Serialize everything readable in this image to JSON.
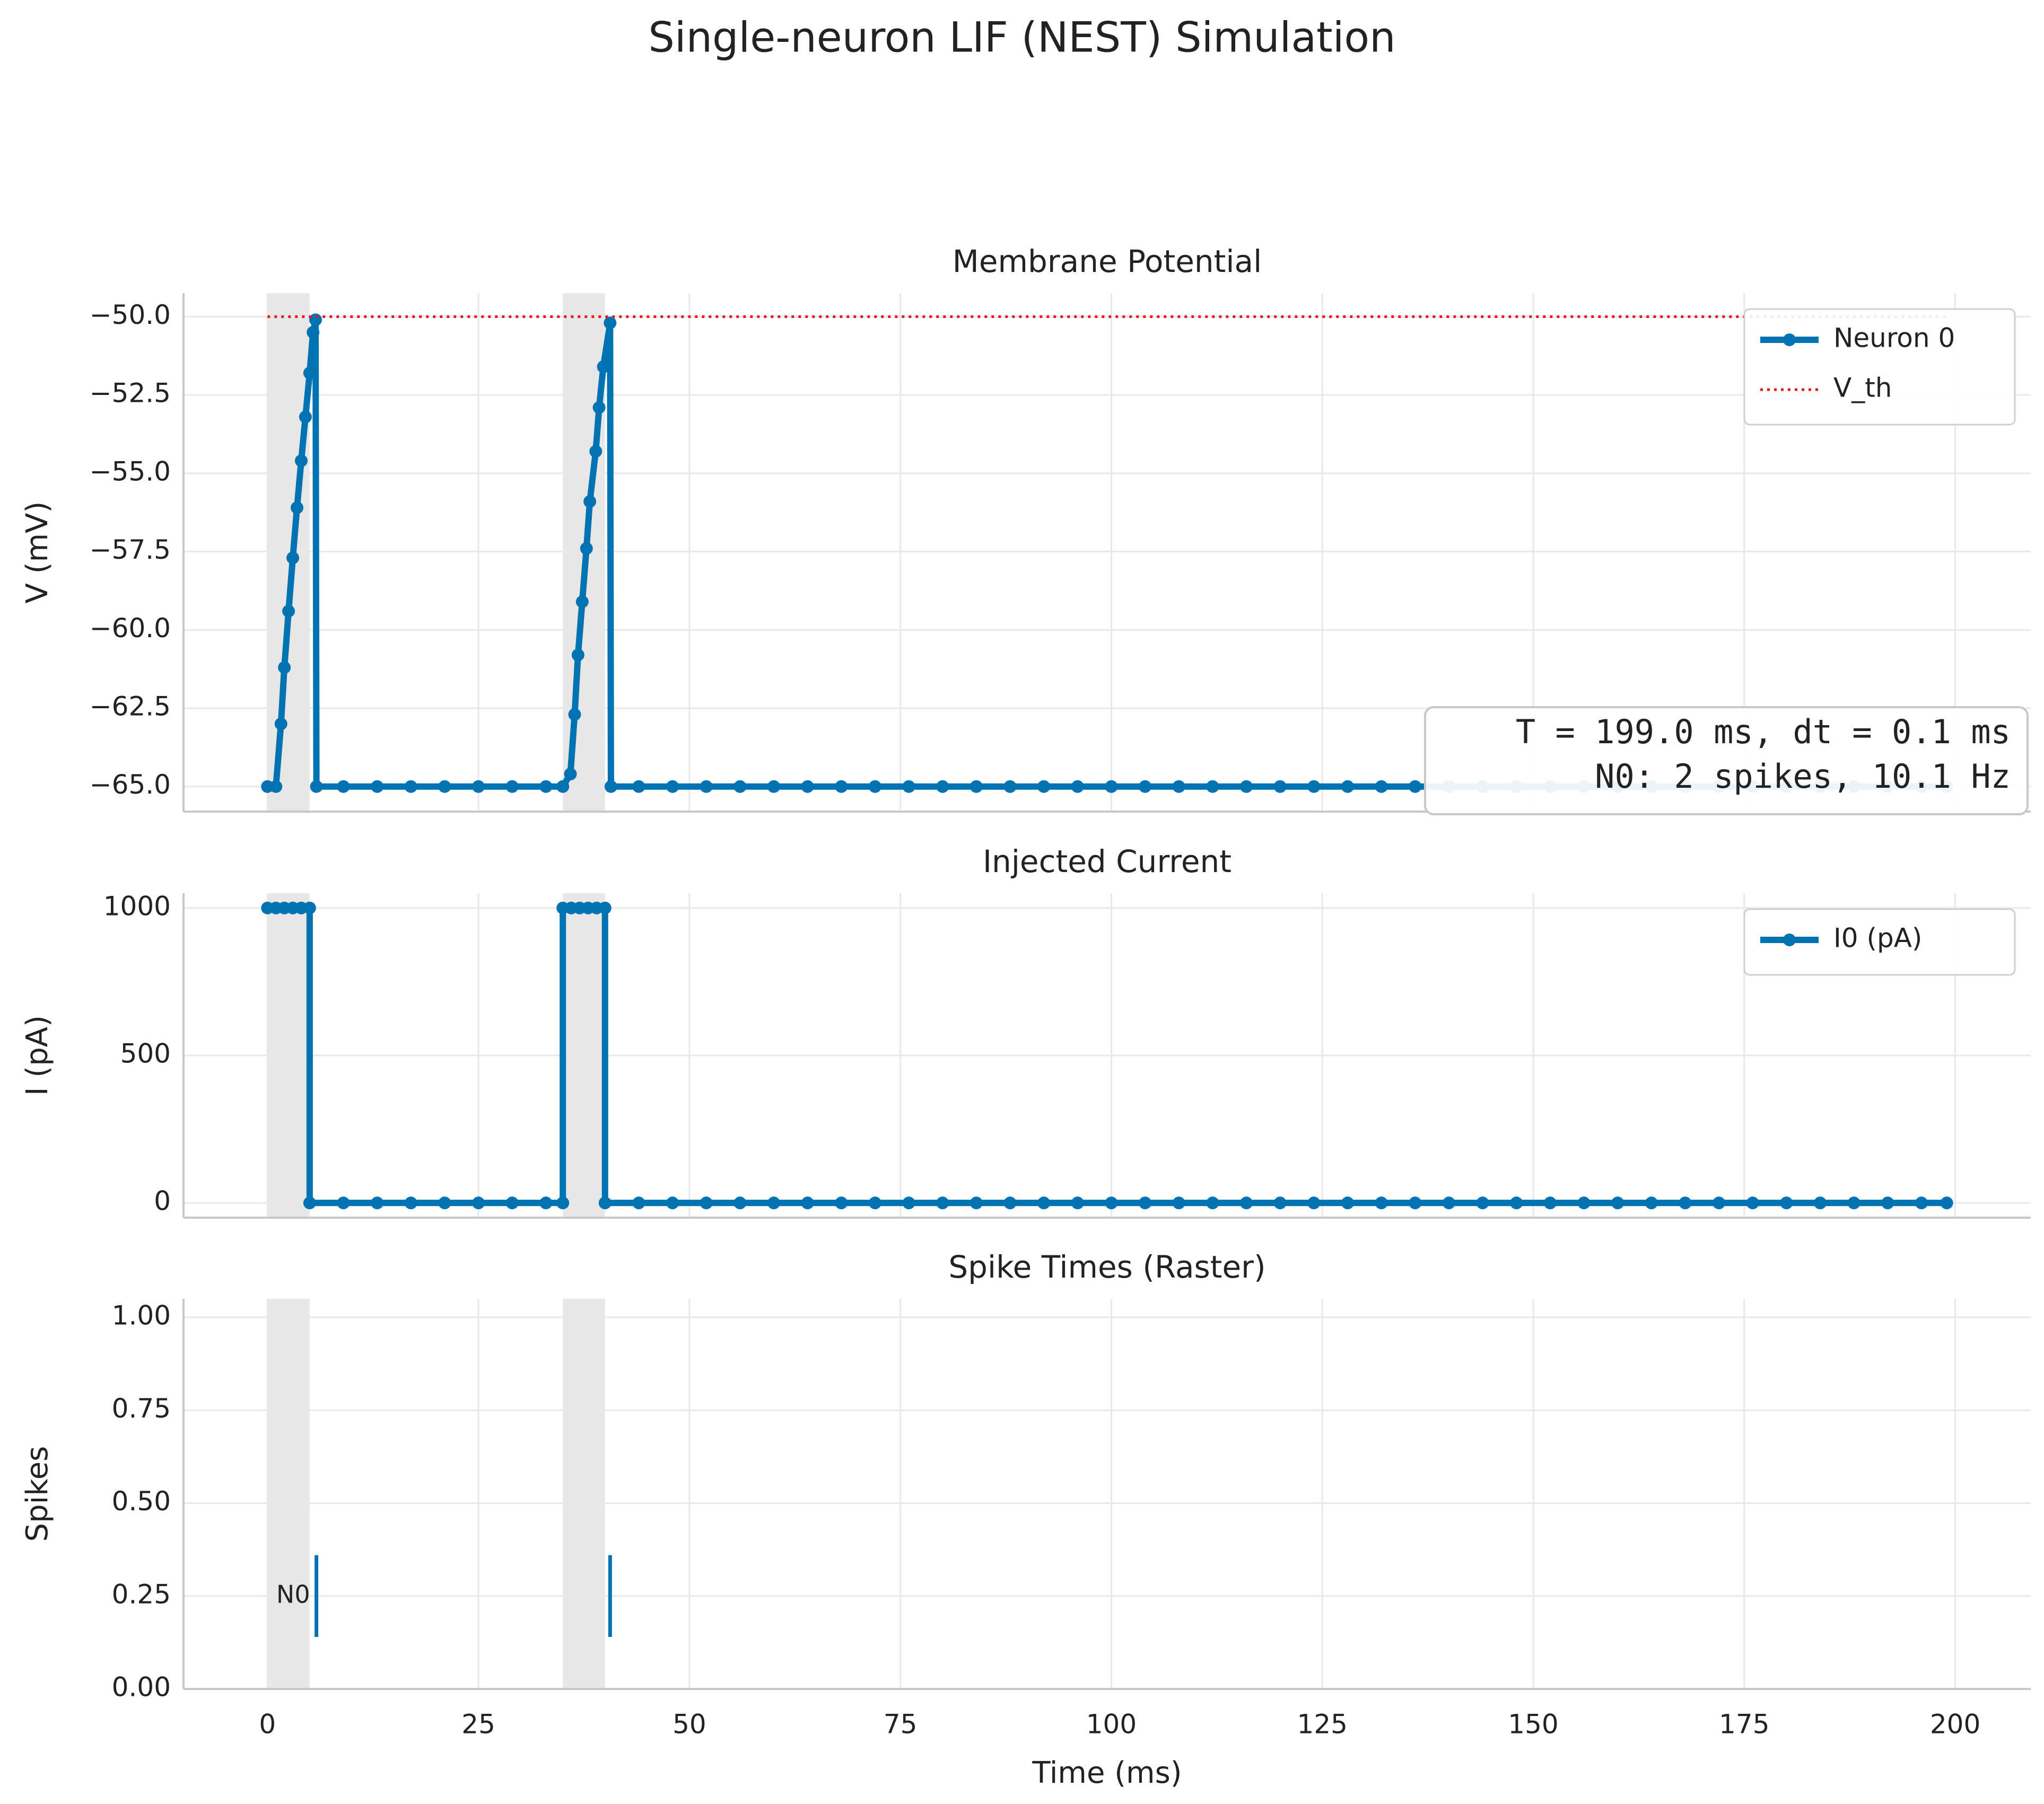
{
  "title": "Single-neuron LIF (NEST) Simulation",
  "chart_data": [
    {
      "type": "line",
      "title": "Membrane Potential",
      "ylabel": "V (mV)",
      "xlim": [
        -9.95,
        208.95
      ],
      "xticks": [
        0,
        25,
        50,
        75,
        100,
        125,
        150,
        175,
        200
      ],
      "ylim": [
        -65.8,
        -49.25
      ],
      "yticks": [
        {
          "value": -65,
          "label": "−65.0"
        },
        {
          "value": -62.5,
          "label": "−62.5"
        },
        {
          "value": -60,
          "label": "−60.0"
        },
        {
          "value": -57.5,
          "label": "−57.5"
        },
        {
          "value": -55,
          "label": "−55.0"
        },
        {
          "value": -52.5,
          "label": "−52.5"
        },
        {
          "value": -50,
          "label": "−50.0"
        }
      ],
      "grid": true,
      "legend": "upper right",
      "shaded": [
        [
          0,
          5
        ],
        [
          35,
          40
        ]
      ],
      "series": [
        {
          "name": "Neuron 0",
          "color": "#0173b2",
          "x": [
            0,
            1,
            1.6,
            2,
            2.5,
            3,
            3.5,
            4,
            4.5,
            5,
            5.4,
            5.7,
            5.8,
            9,
            13,
            17,
            21,
            25,
            29,
            33,
            35,
            35.9,
            36.4,
            36.8,
            37.3,
            37.8,
            38.2,
            38.9,
            39.3,
            39.8,
            40.6,
            40.7,
            44,
            48,
            52,
            56,
            60,
            64,
            68,
            72,
            76,
            80,
            84,
            88,
            92,
            96,
            100,
            104,
            108,
            112,
            116,
            120,
            124,
            128,
            132,
            136,
            140,
            144,
            148,
            152,
            156,
            160,
            164,
            168,
            172,
            176,
            180,
            184,
            188,
            192,
            196,
            199
          ],
          "values": [
            -65,
            -65,
            -63,
            -61.2,
            -59.4,
            -57.7,
            -56.1,
            -54.6,
            -53.2,
            -51.8,
            -50.5,
            -50.1,
            -65,
            -65,
            -65,
            -65,
            -65,
            -65,
            -65,
            -65,
            -65,
            -64.6,
            -62.7,
            -60.8,
            -59.1,
            -57.4,
            -55.9,
            -54.3,
            -52.9,
            -51.6,
            -50.2,
            -65,
            -65,
            -65,
            -65,
            -65,
            -65,
            -65,
            -65,
            -65,
            -65,
            -65,
            -65,
            -65,
            -65,
            -65,
            -65,
            -65,
            -65,
            -65,
            -65,
            -65,
            -65,
            -65,
            -65,
            -65,
            -65,
            -65,
            -65,
            -65,
            -65,
            -65,
            -65,
            -65,
            -65,
            -65,
            -65,
            -65,
            -65,
            -65,
            -65,
            -65
          ]
        }
      ],
      "threshold": {
        "name": "V_th",
        "value": -50,
        "x": [
          0,
          199
        ],
        "color": "#e41a1c"
      },
      "annotation": [
        "T = 199.0 ms, dt = 0.1 ms",
        "N0: 2 spikes, 10.1 Hz"
      ]
    },
    {
      "type": "line",
      "title": "Injected Current",
      "ylabel": "I (pA)",
      "xlim": [
        -9.95,
        208.95
      ],
      "xticks": [
        0,
        25,
        50,
        75,
        100,
        125,
        150,
        175,
        200
      ],
      "ylim": [
        -50,
        1050
      ],
      "yticks": [
        0,
        500,
        1000
      ],
      "grid": true,
      "legend": "upper right",
      "shaded": [
        [
          0,
          5
        ],
        [
          35,
          40
        ]
      ],
      "series": [
        {
          "name": "I0 (pA)",
          "color": "#0173b2",
          "x": [
            0,
            1,
            2,
            3,
            4,
            5,
            5,
            9,
            13,
            17,
            21,
            25,
            29,
            33,
            35,
            35,
            36,
            37,
            38,
            39,
            40,
            40,
            44,
            48,
            52,
            56,
            60,
            64,
            68,
            72,
            76,
            80,
            84,
            88,
            92,
            96,
            100,
            104,
            108,
            112,
            116,
            120,
            124,
            128,
            132,
            136,
            140,
            144,
            148,
            152,
            156,
            160,
            164,
            168,
            172,
            176,
            180,
            184,
            188,
            192,
            196,
            199
          ],
          "values": [
            1000,
            1000,
            1000,
            1000,
            1000,
            1000,
            0,
            0,
            0,
            0,
            0,
            0,
            0,
            0,
            0,
            1000,
            1000,
            1000,
            1000,
            1000,
            1000,
            0,
            0,
            0,
            0,
            0,
            0,
            0,
            0,
            0,
            0,
            0,
            0,
            0,
            0,
            0,
            0,
            0,
            0,
            0,
            0,
            0,
            0,
            0,
            0,
            0,
            0,
            0,
            0,
            0,
            0,
            0,
            0,
            0,
            0,
            0,
            0,
            0,
            0,
            0,
            0,
            0
          ]
        }
      ]
    },
    {
      "type": "raster",
      "title": "Spike Times (Raster)",
      "ylabel": "Spikes",
      "xlabel": "Time (ms)",
      "xlim": [
        -9.95,
        208.95
      ],
      "xticks": [
        0,
        25,
        50,
        75,
        100,
        125,
        150,
        175,
        200
      ],
      "ylim": [
        0,
        1.05
      ],
      "yticks": [
        {
          "value": 0,
          "label": "0.00"
        },
        {
          "value": 0.25,
          "label": "0.25"
        },
        {
          "value": 0.5,
          "label": "0.50"
        },
        {
          "value": 0.75,
          "label": "0.75"
        },
        {
          "value": 1,
          "label": "1.00"
        }
      ],
      "grid": true,
      "shaded": [
        [
          0,
          5
        ],
        [
          35,
          40
        ]
      ],
      "series": [
        {
          "name": "N0",
          "color": "#0173b2",
          "x": [
            5.8,
            40.6
          ],
          "y": 0.25
        }
      ]
    }
  ]
}
